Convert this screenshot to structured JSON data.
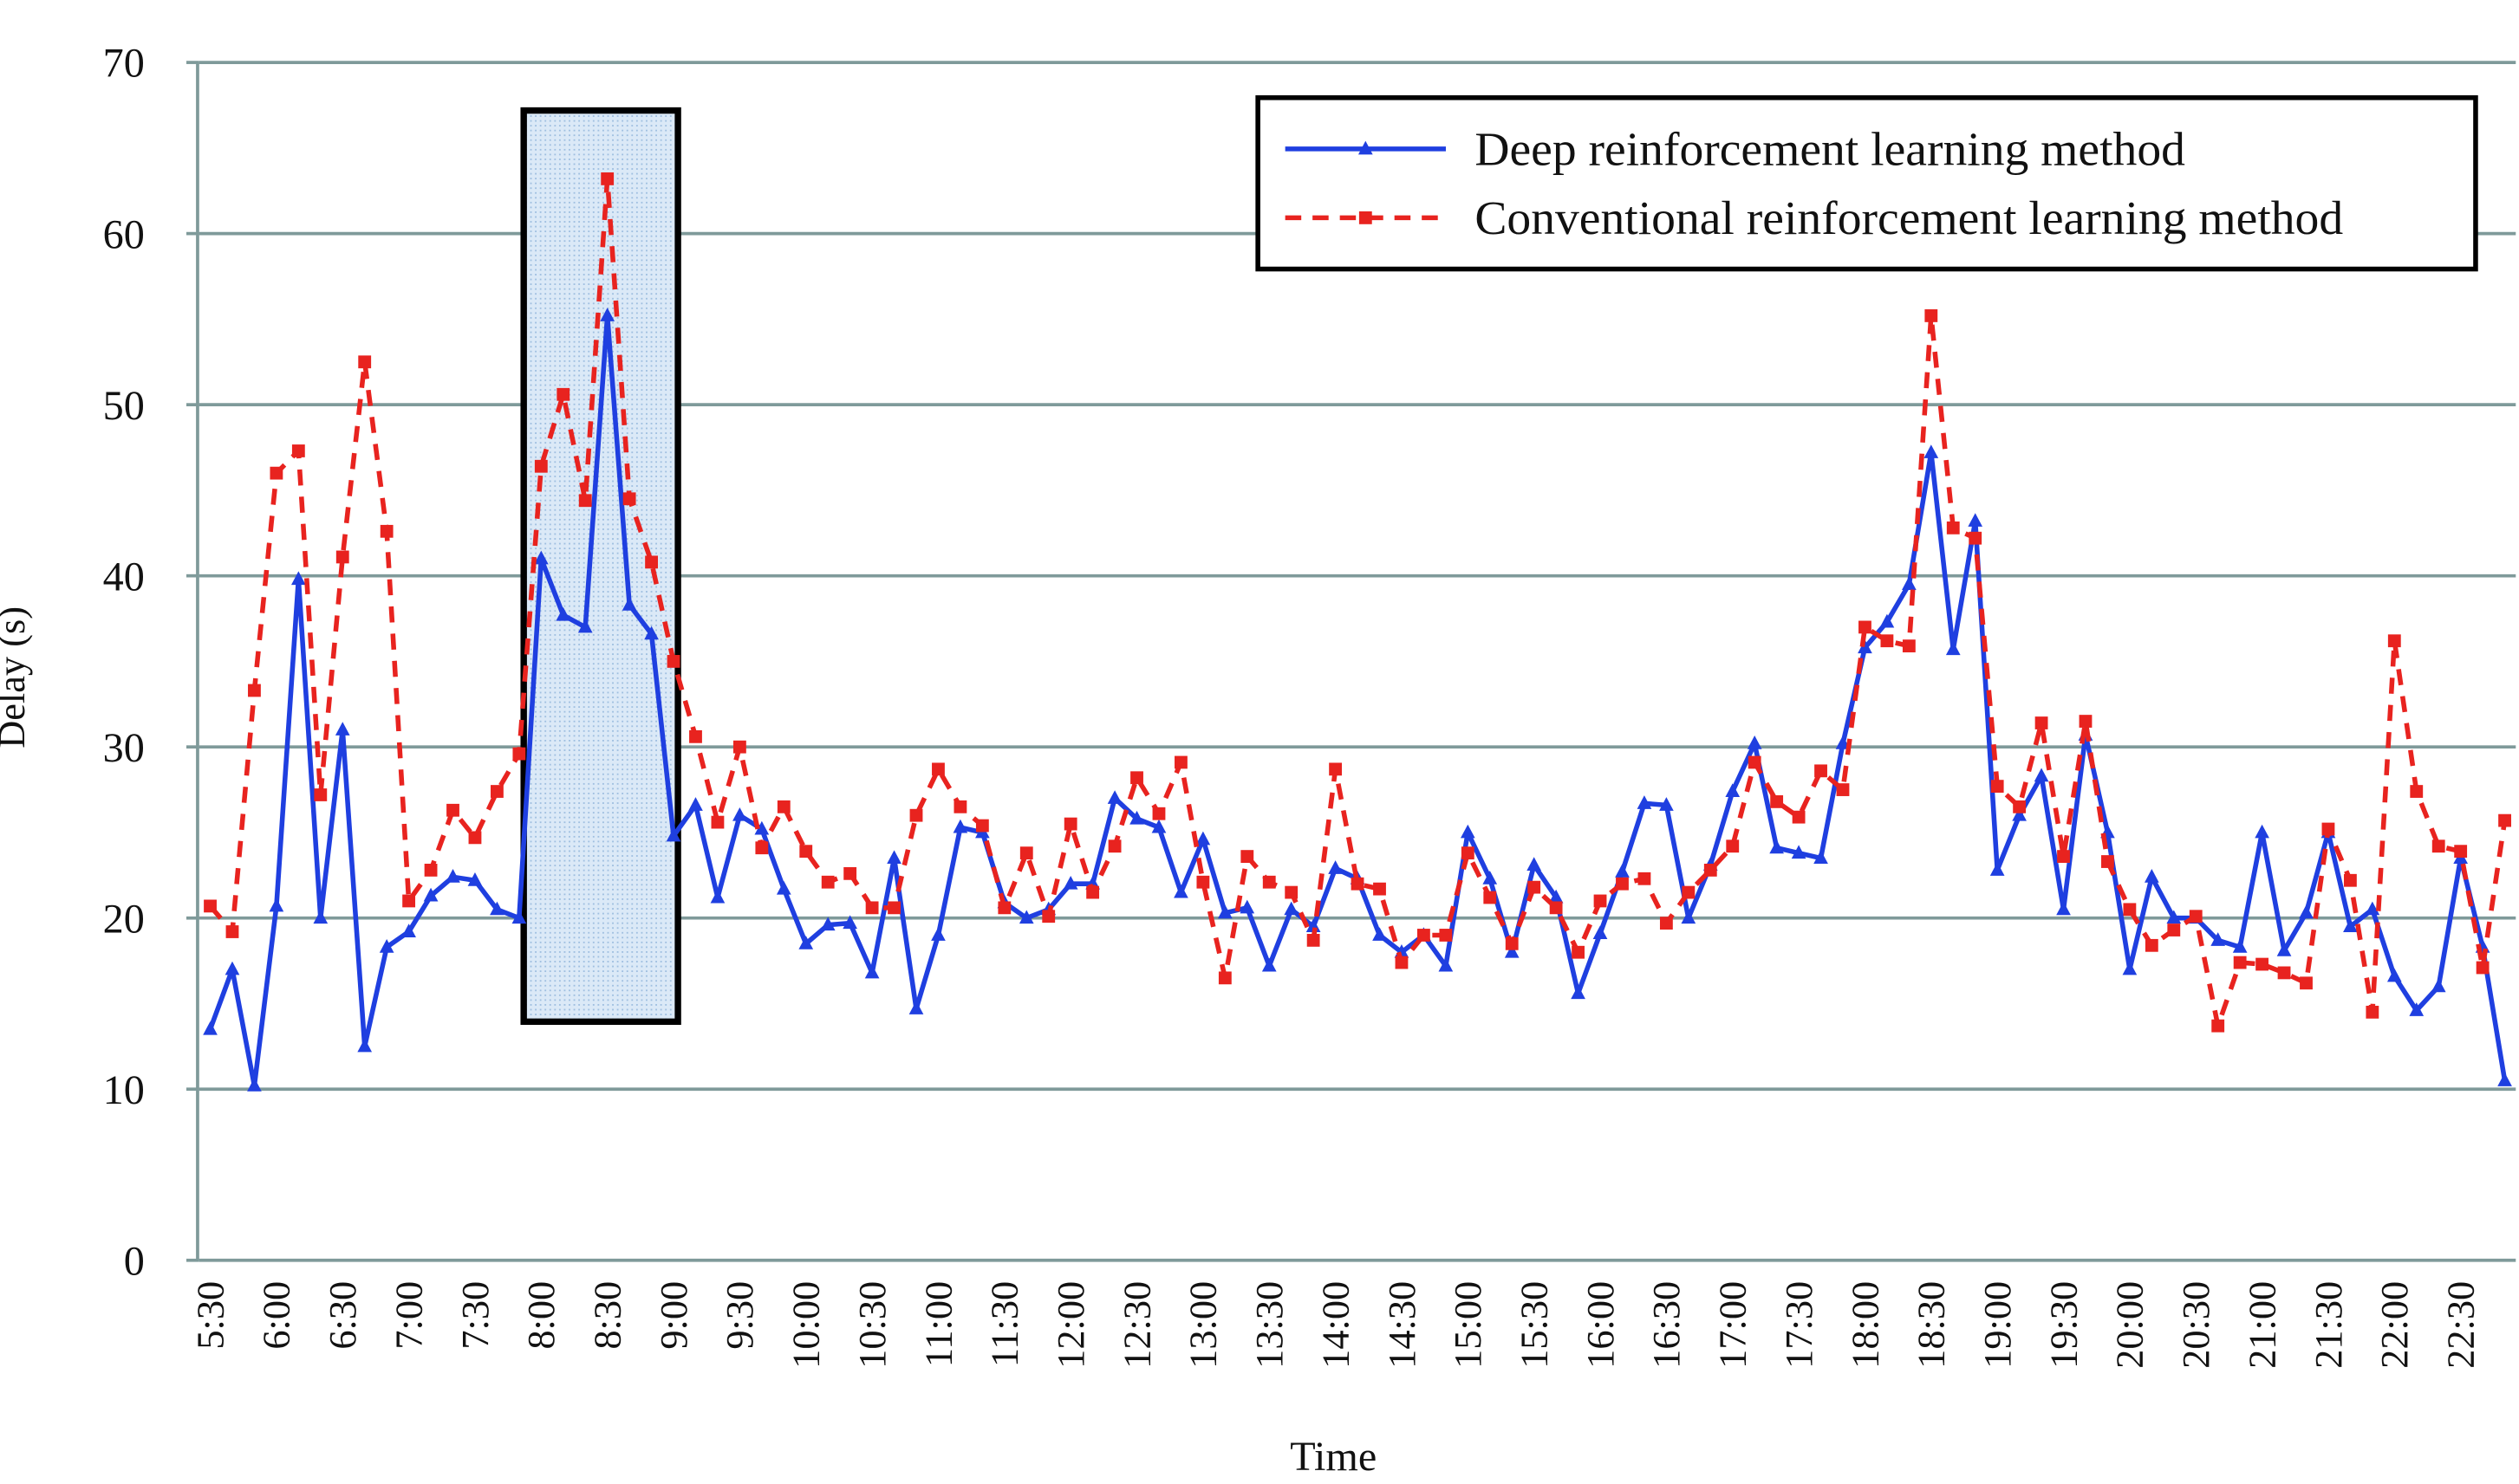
{
  "chart_data": {
    "type": "line",
    "x_label": "Time",
    "y_label": "Delay (s)",
    "categories": [
      "5:30",
      null,
      null,
      "6:00",
      null,
      null,
      "6:30",
      null,
      null,
      "7:00",
      null,
      null,
      "7:30",
      null,
      null,
      "8:00",
      null,
      null,
      "8:30",
      null,
      null,
      "9:00",
      null,
      null,
      "9:30",
      null,
      null,
      "10:00",
      null,
      null,
      "10:30",
      null,
      null,
      "11:00",
      null,
      null,
      "11:30",
      null,
      null,
      "12:00",
      null,
      null,
      "12:30",
      null,
      null,
      "13:00",
      null,
      null,
      "13:30",
      null,
      null,
      "14:00",
      null,
      null,
      "14:30",
      null,
      null,
      "15:00",
      null,
      null,
      "15:30",
      null,
      null,
      "16:00",
      null,
      null,
      "16:30",
      null,
      null,
      "17:00",
      null,
      null,
      "17:30",
      null,
      null,
      "18:00",
      null,
      null,
      "18:30",
      null,
      null,
      "19:00",
      null,
      null,
      "19:30",
      null,
      null,
      "20:00",
      null,
      null,
      "20:30",
      null,
      null,
      "21:00",
      null,
      null,
      "21:30",
      null,
      null,
      "22:00",
      null,
      null,
      "22:30",
      null,
      null
    ],
    "series": [
      {
        "name": "Deep reinforcement learning method",
        "color": "#1f3fe0",
        "marker": "triangle",
        "dashed": false,
        "values": [
          13.5,
          17,
          10.2,
          20.7,
          39.8,
          20,
          31,
          12.5,
          18.3,
          19.2,
          21.3,
          22.4,
          22.2,
          20.5,
          20,
          41,
          37.7,
          37,
          55.2,
          38.3,
          36.6,
          24.8,
          26.6,
          21.2,
          26,
          25.2,
          21.7,
          18.5,
          19.6,
          19.7,
          16.8,
          23.5,
          14.7,
          19,
          25.3,
          25,
          20.9,
          20,
          20.5,
          22,
          22,
          27,
          25.8,
          25.3,
          21.5,
          24.6,
          20.3,
          20.6,
          17.2,
          20.5,
          19.5,
          22.9,
          22.3,
          19,
          18,
          19,
          17.2,
          25,
          22.3,
          18,
          23.1,
          21.2,
          15.6,
          19.1,
          22.7,
          26.7,
          26.6,
          20,
          23.1,
          27.4,
          30.2,
          24.1,
          23.8,
          23.5,
          30.2,
          35.8,
          37.3,
          39.5,
          47.2,
          35.7,
          43.2,
          22.8,
          26,
          28.3,
          20.5,
          30.7,
          25,
          17,
          22.4,
          20,
          20,
          18.7,
          18.3,
          25,
          18.1,
          20.3,
          25,
          19.5,
          20.5,
          16.6,
          14.6,
          16,
          23.5,
          18.3,
          10.5
        ]
      },
      {
        "name": "Conventional reinforcement learning method",
        "color": "#e8231f",
        "marker": "square",
        "dashed": true,
        "values": [
          20.7,
          19.2,
          33.3,
          46,
          47.3,
          27.2,
          41.1,
          52.5,
          42.6,
          21,
          22.8,
          26.3,
          24.7,
          27.4,
          29.6,
          46.4,
          50.6,
          44.4,
          63.2,
          44.5,
          40.8,
          35,
          30.6,
          25.6,
          30,
          24.1,
          26.5,
          23.9,
          22.1,
          22.6,
          20.6,
          20.6,
          26,
          28.7,
          26.5,
          25.4,
          20.6,
          23.8,
          20.1,
          25.5,
          21.5,
          24.2,
          28.2,
          26.1,
          29.1,
          22.1,
          16.5,
          23.6,
          22.1,
          21.5,
          18.7,
          28.7,
          22,
          21.7,
          17.4,
          19,
          19,
          23.8,
          21.2,
          18.5,
          21.8,
          20.6,
          18,
          21,
          22,
          22.3,
          19.7,
          21.5,
          22.8,
          24.2,
          29.1,
          26.8,
          25.9,
          28.6,
          27.5,
          37,
          36.2,
          35.9,
          55.2,
          42.8,
          42.2,
          27.7,
          26.5,
          31.4,
          23.6,
          31.5,
          23.3,
          20.5,
          18.4,
          19.3,
          20.1,
          13.7,
          17.4,
          17.3,
          16.8,
          16.2,
          25.2,
          22.2,
          14.5,
          36.2,
          27.4,
          24.2,
          23.9,
          17.1,
          25.7
        ]
      }
    ],
    "ylim": [
      0,
      70
    ],
    "yticks": [
      0,
      10,
      20,
      30,
      40,
      50,
      60,
      70
    ],
    "grid": true,
    "legend": "upper right"
  }
}
